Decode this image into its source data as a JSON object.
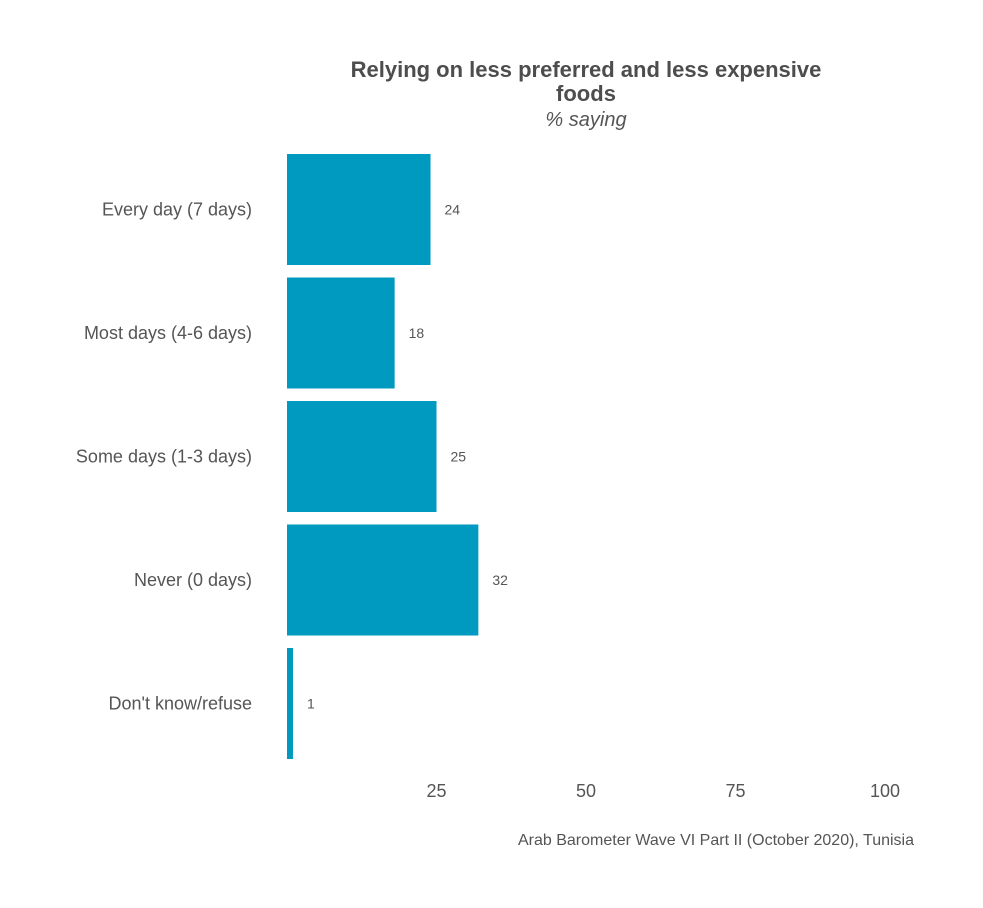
{
  "chart_data": {
    "type": "bar",
    "orientation": "horizontal",
    "title_lines": [
      "Relying on less preferred and less expensive",
      "foods"
    ],
    "subtitle": "% saying",
    "categories": [
      "Every day (7 days)",
      "Most days (4-6 days)",
      "Some days (1-3 days)",
      "Never (0 days)",
      "Don't know/refuse"
    ],
    "values": [
      24,
      18,
      25,
      32,
      1
    ],
    "data_labels": [
      "24",
      "18",
      "25",
      "32",
      "1"
    ],
    "xlim": [
      0,
      100
    ],
    "x_ticks": [
      25,
      50,
      75,
      100
    ],
    "x_tick_labels": [
      "25",
      "50",
      "75",
      "100"
    ],
    "xlabel": "",
    "ylabel": "",
    "grid": false,
    "legend": "none",
    "bar_color": "#0099bf",
    "caption": "Arab Barometer Wave VI Part II (October 2020), Tunisia"
  }
}
